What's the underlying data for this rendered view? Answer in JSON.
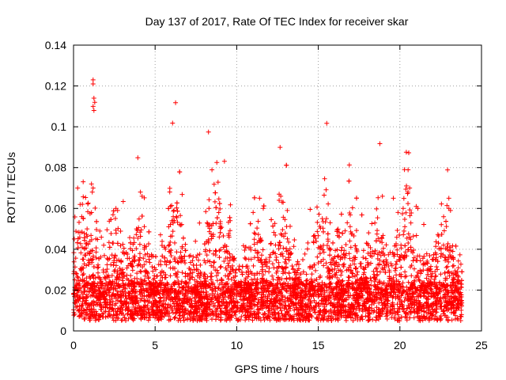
{
  "chart_data": {
    "type": "scatter",
    "title": "Day 137 of 2017, Rate Of TEC Index for receiver skar",
    "xlabel": "GPS time / hours",
    "ylabel": "ROTI / TECUs",
    "xlim": [
      0,
      25
    ],
    "ylim": [
      0,
      0.14
    ],
    "xticks": [
      0,
      5,
      10,
      15,
      20,
      25
    ],
    "xtick_labels": [
      "0",
      "5",
      "10",
      "15",
      "20",
      "25"
    ],
    "yticks": [
      0,
      0.02,
      0.04,
      0.06,
      0.08,
      0.1,
      0.12,
      0.14
    ],
    "ytick_labels": [
      "0",
      "0.02",
      "0.04",
      "0.06",
      "0.08",
      "0.1",
      "0.12",
      "0.14"
    ],
    "grid": true,
    "marker": "+",
    "color": "#ff0000",
    "time_range_hours": [
      0,
      23.8
    ],
    "series": [
      {
        "name": "ROTI",
        "baseline_range": [
          0.005,
          0.03
        ],
        "outliers": [
          {
            "x": 1.2,
            "y": 0.123
          },
          {
            "x": 1.2,
            "y": 0.121
          },
          {
            "x": 1.25,
            "y": 0.114
          },
          {
            "x": 1.3,
            "y": 0.112
          },
          {
            "x": 1.2,
            "y": 0.11
          },
          {
            "x": 1.25,
            "y": 0.108
          },
          {
            "x": 1.1,
            "y": 0.072
          },
          {
            "x": 1.15,
            "y": 0.068
          },
          {
            "x": 1.2,
            "y": 0.07
          },
          {
            "x": 1.1,
            "y": 0.058
          },
          {
            "x": 0.5,
            "y": 0.056
          },
          {
            "x": 0.6,
            "y": 0.055
          },
          {
            "x": 2.6,
            "y": 0.06
          },
          {
            "x": 2.7,
            "y": 0.059
          },
          {
            "x": 4.1,
            "y": 0.068
          },
          {
            "x": 4.2,
            "y": 0.066
          },
          {
            "x": 6.3,
            "y": 0.056
          },
          {
            "x": 6.1,
            "y": 0.054
          },
          {
            "x": 8.3,
            "y": 0.06
          },
          {
            "x": 8.9,
            "y": 0.058
          },
          {
            "x": 9.6,
            "y": 0.054
          },
          {
            "x": 11.4,
            "y": 0.065
          },
          {
            "x": 12.6,
            "y": 0.067
          },
          {
            "x": 12.7,
            "y": 0.066
          },
          {
            "x": 12.6,
            "y": 0.064
          },
          {
            "x": 13.1,
            "y": 0.059
          },
          {
            "x": 15.5,
            "y": 0.055
          },
          {
            "x": 19.6,
            "y": 0.065
          },
          {
            "x": 20.4,
            "y": 0.071
          },
          {
            "x": 20.6,
            "y": 0.07
          },
          {
            "x": 21.0,
            "y": 0.061
          },
          {
            "x": 21.1,
            "y": 0.06
          },
          {
            "x": 20.2,
            "y": 0.06
          },
          {
            "x": 23.0,
            "y": 0.065
          },
          {
            "x": 23.0,
            "y": 0.06
          },
          {
            "x": 23.1,
            "y": 0.059
          }
        ]
      }
    ]
  }
}
